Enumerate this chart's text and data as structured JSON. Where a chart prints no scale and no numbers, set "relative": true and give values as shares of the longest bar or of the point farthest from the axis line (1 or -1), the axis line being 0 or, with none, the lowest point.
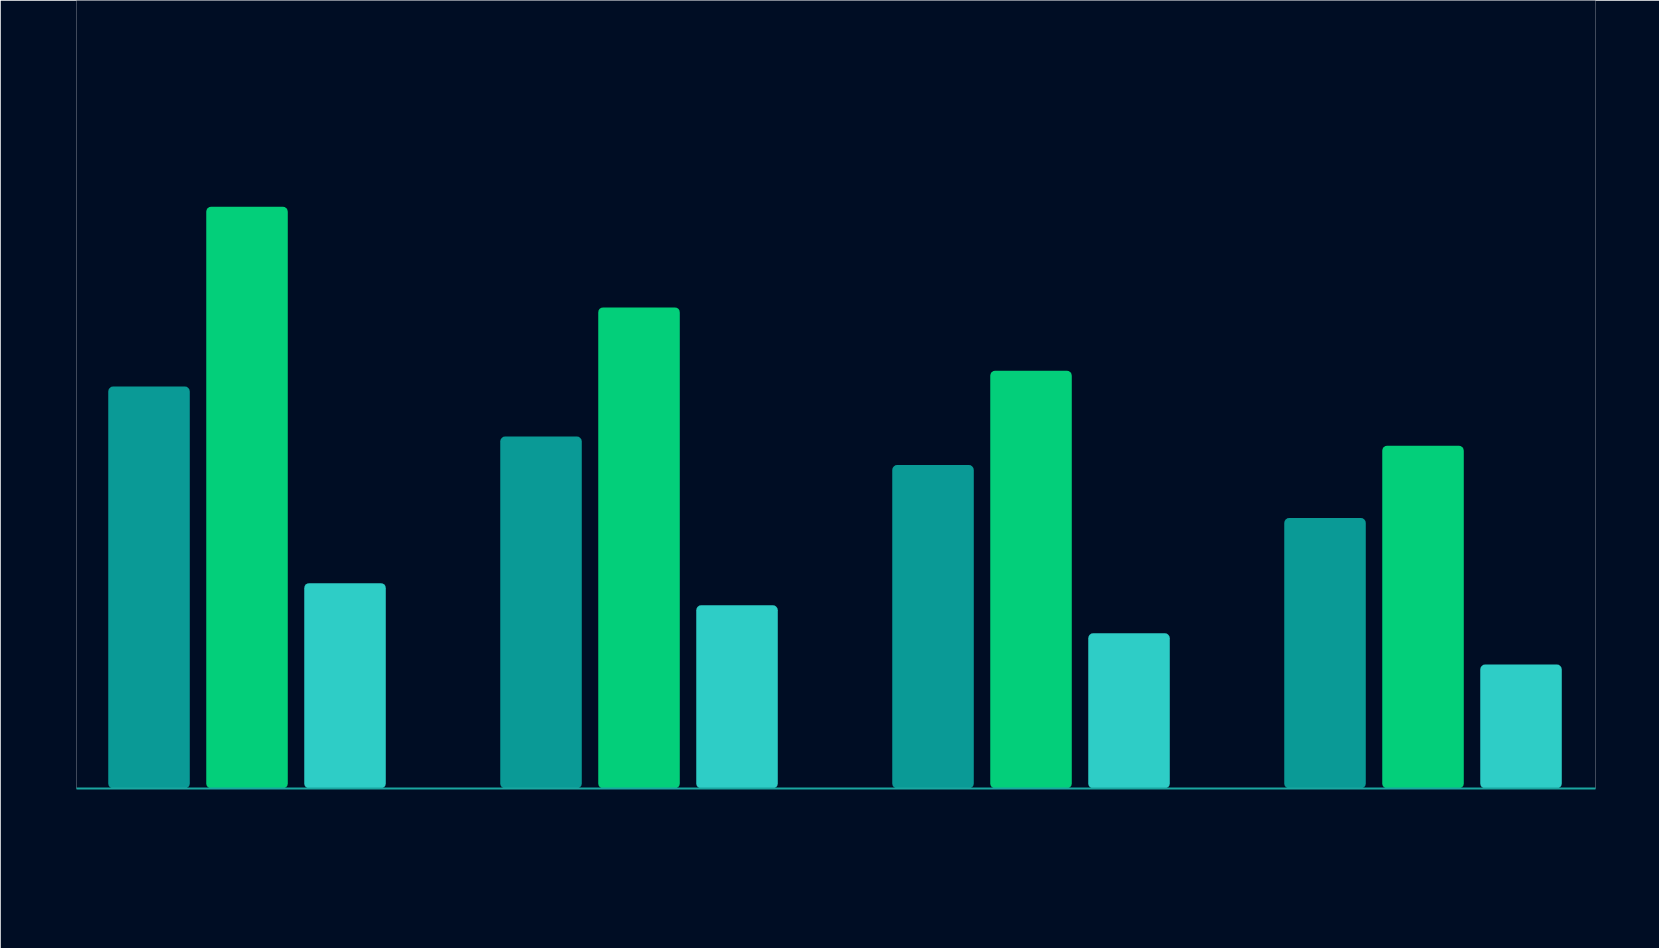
{
  "chart_data": {
    "type": "bar",
    "relative": true,
    "categories": [
      null,
      null,
      null,
      null
    ],
    "series": [
      {
        "color": "#0a9a96",
        "values": [
          0.691,
          0.605,
          0.556,
          0.465
        ]
      },
      {
        "color": "#03cf7a",
        "values": [
          1,
          0.827,
          0.718,
          0.589
        ]
      },
      {
        "color": "#2ecdc6",
        "values": [
          0.353,
          0.315,
          0.267,
          0.213
        ]
      }
    ]
  }
}
